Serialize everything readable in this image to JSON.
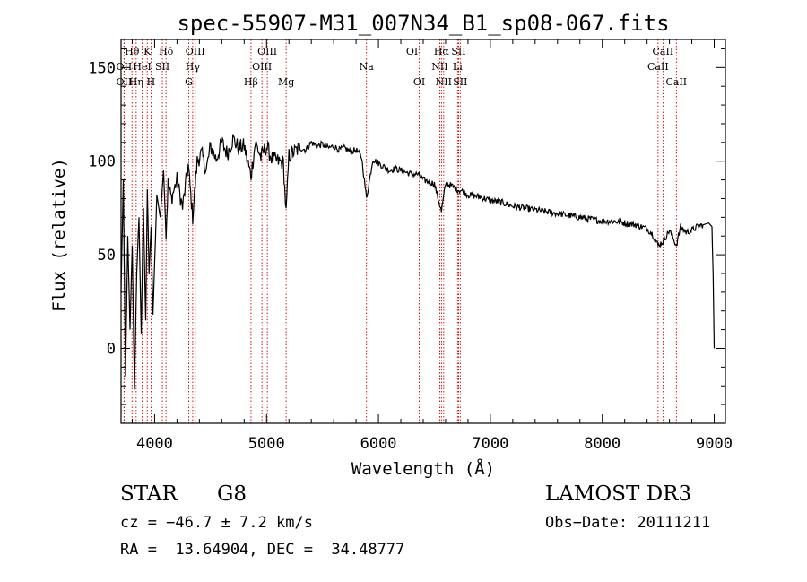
{
  "chart_data": {
    "type": "line",
    "title": "spec-55907-M31_007N34_B1_sp08-067.fits",
    "xlabel": "Wavelength (Å)",
    "ylabel": "Flux (relative)",
    "xlim": [
      3700,
      9100
    ],
    "ylim": [
      -40,
      165
    ],
    "xticks": [
      4000,
      5000,
      6000,
      7000,
      8000,
      9000
    ],
    "yticks": [
      0,
      50,
      100,
      150
    ],
    "grid": false,
    "series": [
      {
        "name": "spectrum",
        "color": "#000000",
        "x": [
          3700,
          3720,
          3740,
          3760,
          3780,
          3800,
          3820,
          3840,
          3860,
          3880,
          3900,
          3920,
          3935,
          3950,
          3968,
          3985,
          4000,
          4020,
          4050,
          4080,
          4102,
          4120,
          4150,
          4200,
          4250,
          4300,
          4340,
          4380,
          4420,
          4460,
          4500,
          4550,
          4600,
          4650,
          4700,
          4750,
          4800,
          4861,
          4900,
          4950,
          5000,
          5050,
          5100,
          5150,
          5175,
          5200,
          5250,
          5300,
          5350,
          5400,
          5450,
          5500,
          5550,
          5600,
          5650,
          5700,
          5750,
          5800,
          5850,
          5893,
          5950,
          6000,
          6050,
          6100,
          6150,
          6200,
          6250,
          6300,
          6350,
          6400,
          6450,
          6500,
          6563,
          6600,
          6650,
          6700,
          6750,
          6800,
          6900,
          7000,
          7100,
          7200,
          7300,
          7400,
          7500,
          7600,
          7700,
          7800,
          7900,
          8000,
          8100,
          8200,
          8300,
          8400,
          8450,
          8498,
          8542,
          8600,
          8662,
          8700,
          8750,
          8800,
          8850,
          8900,
          8950,
          8980,
          8990,
          9000
        ],
        "values": [
          30,
          90,
          -15,
          60,
          10,
          55,
          -22,
          40,
          70,
          8,
          75,
          15,
          85,
          40,
          65,
          18,
          45,
          82,
          70,
          95,
          60,
          88,
          80,
          90,
          75,
          98,
          70,
          100,
          104,
          95,
          108,
          101,
          110,
          104,
          112,
          107,
          108,
          92,
          110,
          102,
          108,
          101,
          100,
          99,
          72,
          103,
          105,
          107,
          106,
          110,
          108,
          109,
          107,
          108,
          106,
          107,
          105,
          106,
          102,
          80,
          101,
          99,
          97,
          95,
          96,
          95,
          94,
          93,
          93,
          90,
          89,
          88,
          73,
          88,
          87,
          85,
          84,
          82,
          81,
          79,
          78,
          76,
          75,
          74,
          73,
          72,
          71,
          70,
          69,
          68,
          68,
          67,
          66,
          64,
          61,
          55,
          57,
          63,
          55,
          65,
          62,
          63,
          65,
          66,
          67,
          65,
          40,
          0
        ]
      }
    ],
    "lines": [
      {
        "label": "Hθ",
        "x": 3798,
        "row": 1
      },
      {
        "label": "Hη",
        "x": 3835,
        "row": 3
      },
      {
        "label": "HeI",
        "x": 3889,
        "row": 2
      },
      {
        "label": "K",
        "x": 3934,
        "row": 1
      },
      {
        "label": "H",
        "x": 3968,
        "row": 3
      },
      {
        "label": "SII",
        "x": 4069,
        "row": 2
      },
      {
        "label": "Hδ",
        "x": 4102,
        "row": 1
      },
      {
        "label": "G",
        "x": 4305,
        "row": 3
      },
      {
        "label": "Hγ",
        "x": 4340,
        "row": 2
      },
      {
        "label": "OIII",
        "x": 4363,
        "row": 1
      },
      {
        "label": "Hβ",
        "x": 4861,
        "row": 3
      },
      {
        "label": "OIII",
        "x": 4959,
        "row": 2
      },
      {
        "label": "OIII",
        "x": 5007,
        "row": 1
      },
      {
        "label": "Mg",
        "x": 5175,
        "row": 3
      },
      {
        "label": "Na",
        "x": 5893,
        "row": 2
      },
      {
        "label": "OI",
        "x": 6300,
        "row": 1
      },
      {
        "label": "OI",
        "x": 6364,
        "row": 3
      },
      {
        "label": "NII",
        "x": 6548,
        "row": 2
      },
      {
        "label": "Hα",
        "x": 6563,
        "row": 1
      },
      {
        "label": "NII",
        "x": 6583,
        "row": 3
      },
      {
        "label": "Li",
        "x": 6707,
        "row": 2
      },
      {
        "label": "SII",
        "x": 6716,
        "row": 1
      },
      {
        "label": "SII",
        "x": 6731,
        "row": 3
      },
      {
        "label": "CaII",
        "x": 8498,
        "row": 2
      },
      {
        "label": "CaII",
        "x": 8542,
        "row": 1
      },
      {
        "label": "CaII",
        "x": 8662,
        "row": 3
      },
      {
        "label": "OII",
        "x": 3727,
        "row": 3
      },
      {
        "label": "OII",
        "x": 3727,
        "row": 2
      }
    ],
    "line_marker_color": "#cc0000"
  },
  "info": {
    "class": "STAR",
    "subclass": "G8",
    "survey": "LAMOST DR3",
    "cz": "cz = −46.7 ± 7.2 km/s",
    "obs_date": "Obs−Date: 20111211",
    "radec": "RA =  13.64904, DEC =  34.48777"
  }
}
